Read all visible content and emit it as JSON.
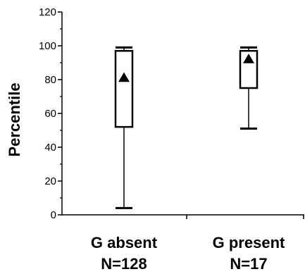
{
  "chart_data": {
    "type": "box",
    "title": "",
    "xlabel": "",
    "ylabel": "Percentile",
    "ylim": [
      0,
      120
    ],
    "yticks": [
      0,
      20,
      40,
      60,
      80,
      100,
      120
    ],
    "grid": false,
    "legend": "none",
    "categories": [
      {
        "name": "G absent",
        "n_label": "N=128"
      },
      {
        "name": "G present",
        "n_label": "N=17"
      }
    ],
    "boxes": [
      {
        "category": "G absent",
        "whisker_low": 4,
        "q1": 52,
        "q3": 97,
        "whisker_high": 99,
        "mean": 81
      },
      {
        "category": "G present",
        "whisker_low": 51,
        "q1": 75,
        "q3": 97,
        "whisker_high": 99,
        "mean": 92
      }
    ],
    "colors": {
      "line": "#000000",
      "box_fill": "#ffffff",
      "mean_marker": "#000000"
    },
    "mean_marker": "triangle"
  }
}
